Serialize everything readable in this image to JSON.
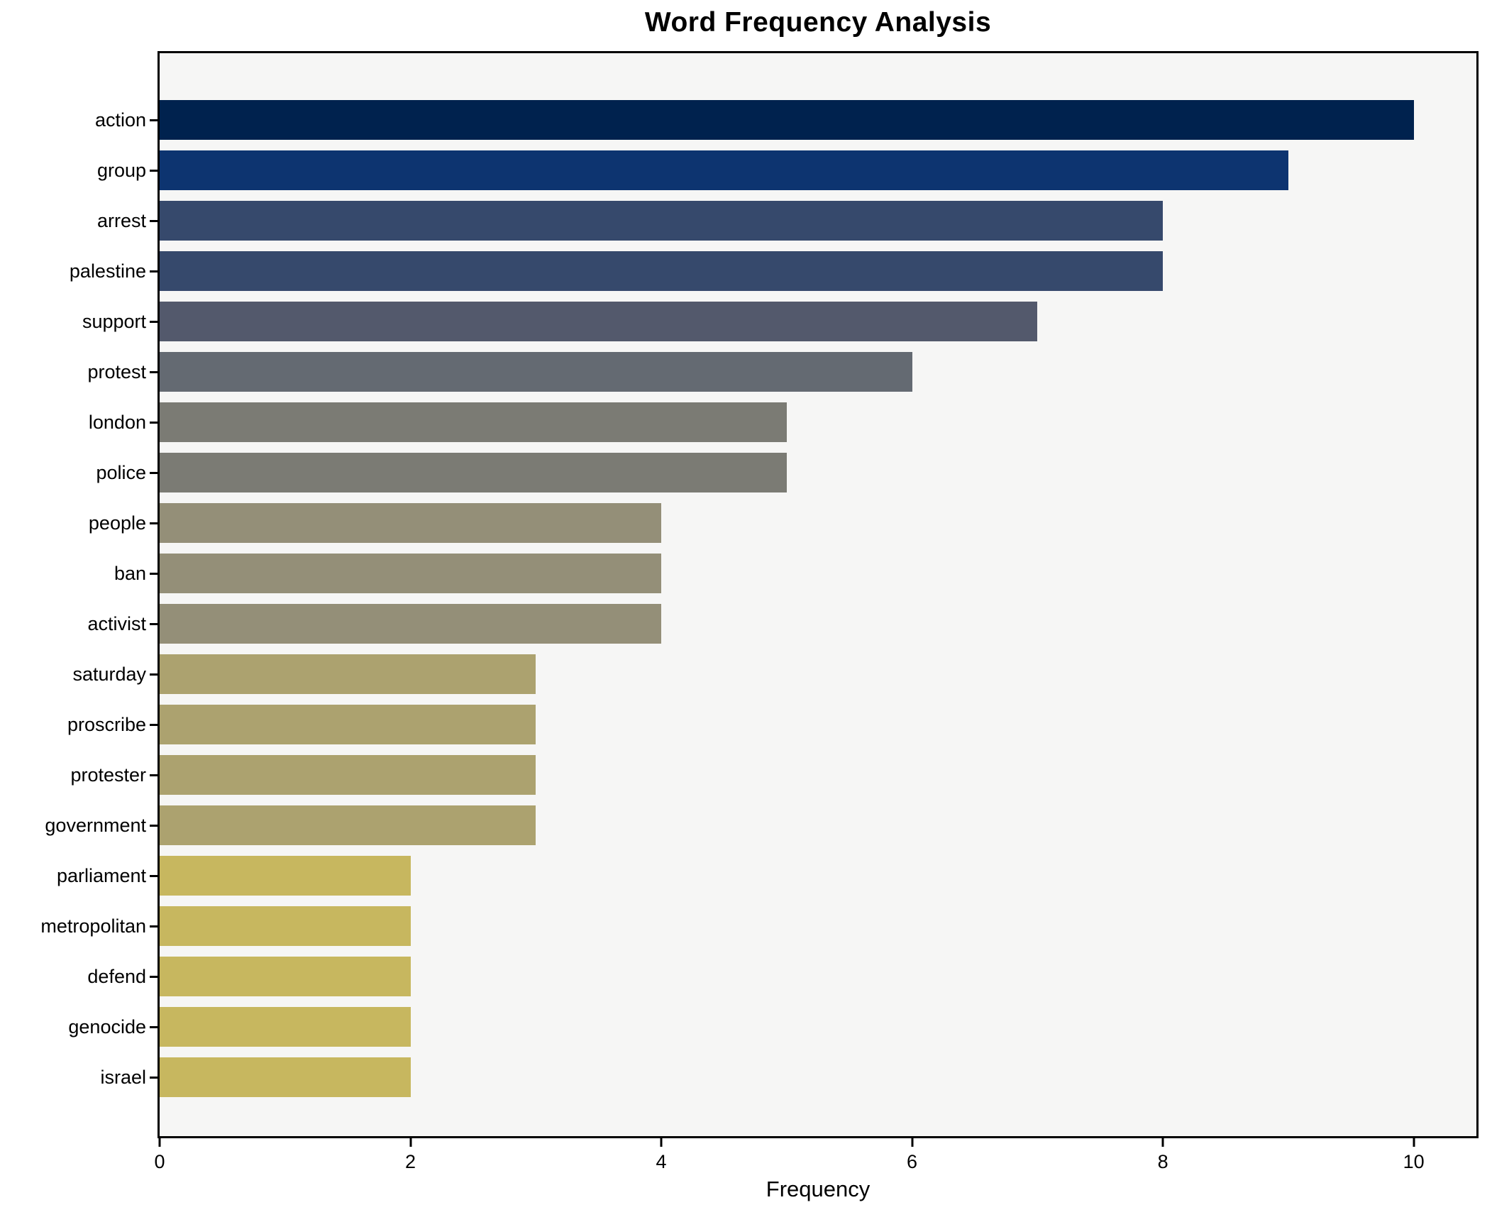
{
  "chart_data": {
    "type": "bar",
    "orientation": "horizontal",
    "title": "Word Frequency Analysis",
    "xlabel": "Frequency",
    "ylabel": "",
    "categories": [
      "action",
      "group",
      "arrest",
      "palestine",
      "support",
      "protest",
      "london",
      "police",
      "people",
      "ban",
      "activist",
      "saturday",
      "proscribe",
      "protester",
      "government",
      "parliament",
      "metropolitan",
      "defend",
      "genocide",
      "israel"
    ],
    "values": [
      10,
      9,
      8,
      8,
      7,
      6,
      5,
      5,
      4,
      4,
      4,
      3,
      3,
      3,
      3,
      2,
      2,
      2,
      2,
      2
    ],
    "bar_colors": [
      "#00224e",
      "#0d3470",
      "#36496c",
      "#36496c",
      "#53596c",
      "#646a72",
      "#7b7b74",
      "#7b7b74",
      "#948f78",
      "#948f78",
      "#948f78",
      "#aca26f",
      "#aca26f",
      "#aca26f",
      "#aca26f",
      "#c7b75f",
      "#c7b75f",
      "#c7b75f",
      "#c7b75f",
      "#c7b75f"
    ],
    "xlim": [
      0,
      10.5
    ],
    "xticks": [
      0,
      2,
      4,
      6,
      8,
      10
    ],
    "grid": false,
    "legend": null,
    "colors": {
      "plot_background": "#f6f6f5",
      "figure_background": "#ffffff",
      "axis": "#000000",
      "text": "#000000"
    }
  }
}
